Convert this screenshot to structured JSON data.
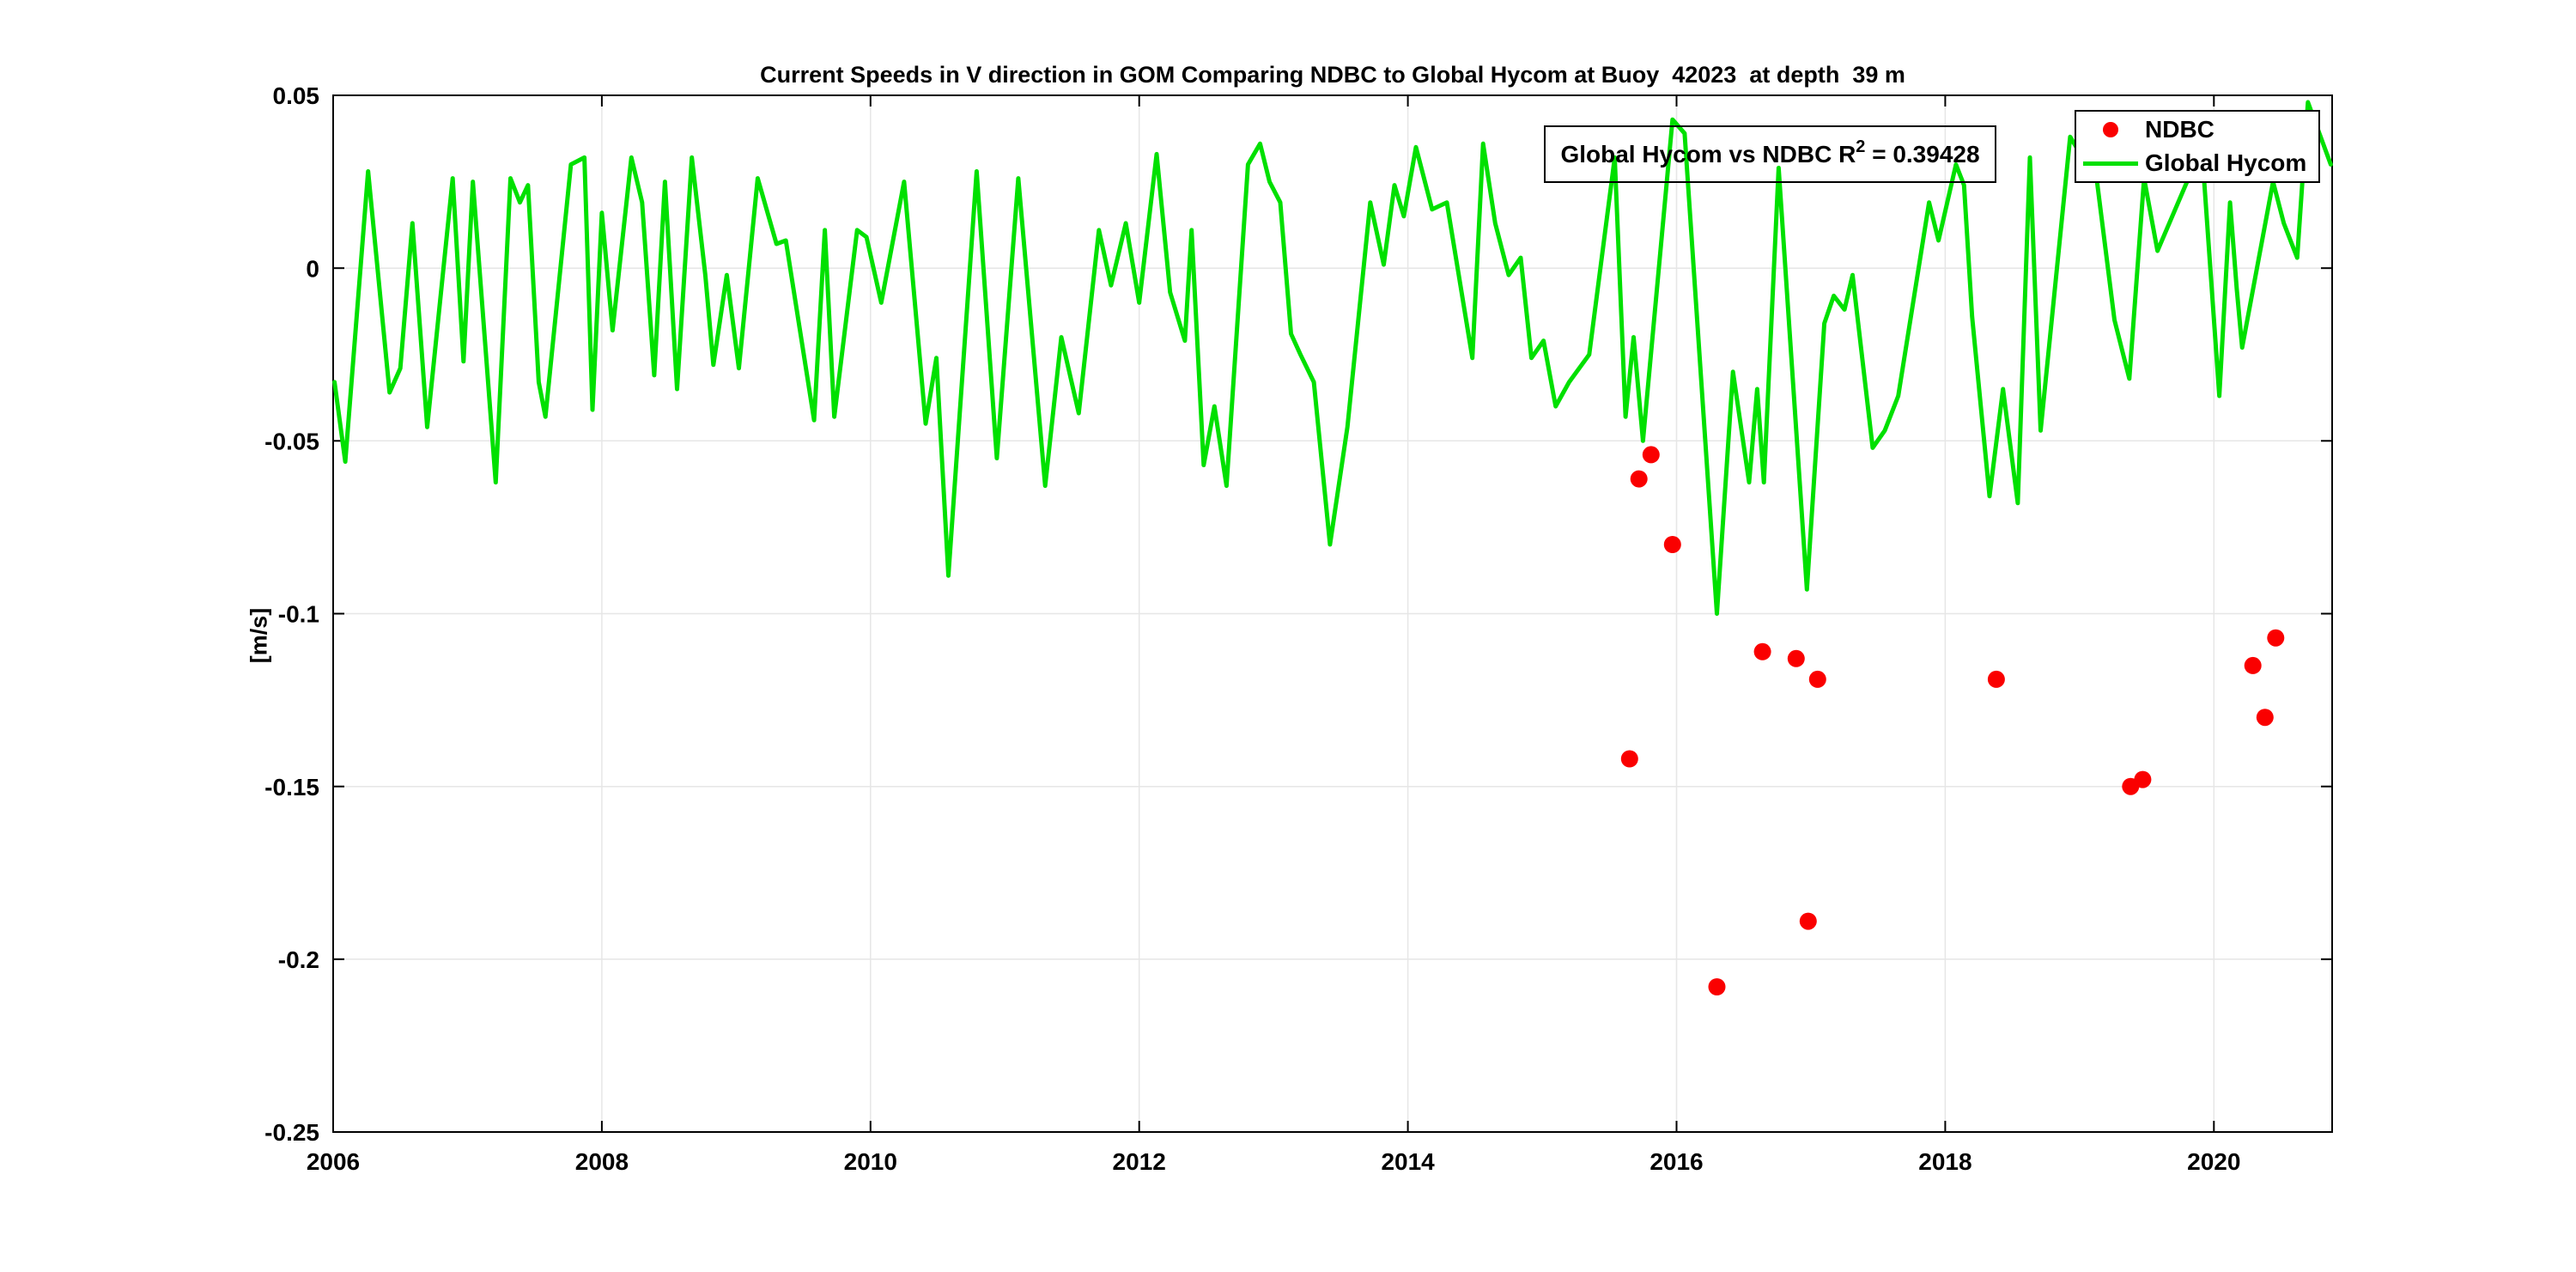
{
  "figure": {
    "title": "Current Speeds in V direction in GOM Comparing NDBC to Global Hycom at Buoy  42023  at depth  39 m",
    "y_axis_label": "[m/s]",
    "annotation": {
      "text_before_sup": "Global Hycom vs NDBC R",
      "sup": "2",
      "text_after_sup": " = 0.39428"
    },
    "colors": {
      "ndbc": "#fa0000",
      "hycom": "#00e000",
      "grid": "#e6e6e6",
      "axis": "#000000",
      "background": "#ffffff"
    }
  },
  "chart_data": {
    "type": "line",
    "title": "Current Speeds in V direction in GOM Comparing NDBC to Global Hycom at Buoy  42023  at depth  39 m",
    "xlabel": "",
    "ylabel": "[m/s]",
    "xlim": [
      2006,
      2020.88
    ],
    "ylim": [
      -0.25,
      0.05
    ],
    "xticks": [
      2006,
      2008,
      2010,
      2012,
      2014,
      2016,
      2018,
      2020
    ],
    "xtick_labels": [
      "2006",
      "2008",
      "2010",
      "2012",
      "2014",
      "2016",
      "2018",
      "2020"
    ],
    "yticks": [
      0.05,
      0,
      -0.05,
      -0.1,
      -0.15,
      -0.2,
      -0.25
    ],
    "ytick_labels": [
      "0.05",
      "0",
      "-0.05",
      "-0.1",
      "-0.15",
      "-0.2",
      "-0.25"
    ],
    "grid": true,
    "legend_position": "top-right",
    "annotation": "Global Hycom vs NDBC R² = 0.39428",
    "series": [
      {
        "name": "NDBC",
        "type": "scatter",
        "color": "#fa0000",
        "marker": "filled-circle",
        "points": [
          [
            2015.65,
            -0.142
          ],
          [
            2015.72,
            -0.061
          ],
          [
            2015.81,
            -0.054
          ],
          [
            2015.97,
            -0.08
          ],
          [
            2016.3,
            -0.208
          ],
          [
            2016.64,
            -0.111
          ],
          [
            2016.89,
            -0.113
          ],
          [
            2016.98,
            -0.189
          ],
          [
            2017.05,
            -0.119
          ],
          [
            2018.38,
            -0.119
          ],
          [
            2019.38,
            -0.15
          ],
          [
            2019.47,
            -0.148
          ],
          [
            2020.29,
            -0.115
          ],
          [
            2020.38,
            -0.13
          ],
          [
            2020.46,
            -0.107
          ]
        ]
      },
      {
        "name": "Global Hycom",
        "type": "line",
        "color": "#00e000",
        "points": [
          [
            2006.01,
            -0.033
          ],
          [
            2006.09,
            -0.056
          ],
          [
            2006.26,
            0.028
          ],
          [
            2006.42,
            -0.036
          ],
          [
            2006.5,
            -0.029
          ],
          [
            2006.59,
            0.013
          ],
          [
            2006.7,
            -0.046
          ],
          [
            2006.89,
            0.026
          ],
          [
            2006.97,
            -0.027
          ],
          [
            2007.04,
            0.025
          ],
          [
            2007.21,
            -0.062
          ],
          [
            2007.32,
            0.026
          ],
          [
            2007.39,
            0.019
          ],
          [
            2007.45,
            0.024
          ],
          [
            2007.53,
            -0.033
          ],
          [
            2007.58,
            -0.043
          ],
          [
            2007.77,
            0.03
          ],
          [
            2007.87,
            0.032
          ],
          [
            2007.93,
            -0.041
          ],
          [
            2008.0,
            0.016
          ],
          [
            2008.08,
            -0.018
          ],
          [
            2008.22,
            0.032
          ],
          [
            2008.3,
            0.019
          ],
          [
            2008.39,
            -0.031
          ],
          [
            2008.47,
            0.025
          ],
          [
            2008.56,
            -0.035
          ],
          [
            2008.67,
            0.032
          ],
          [
            2008.77,
            -0.002
          ],
          [
            2008.83,
            -0.028
          ],
          [
            2008.93,
            -0.002
          ],
          [
            2009.02,
            -0.029
          ],
          [
            2009.16,
            0.026
          ],
          [
            2009.3,
            0.007
          ],
          [
            2009.37,
            0.008
          ],
          [
            2009.58,
            -0.044
          ],
          [
            2009.66,
            0.011
          ],
          [
            2009.73,
            -0.043
          ],
          [
            2009.9,
            0.011
          ],
          [
            2009.97,
            0.009
          ],
          [
            2010.08,
            -0.01
          ],
          [
            2010.25,
            0.025
          ],
          [
            2010.41,
            -0.045
          ],
          [
            2010.49,
            -0.026
          ],
          [
            2010.58,
            -0.089
          ],
          [
            2010.79,
            0.028
          ],
          [
            2010.94,
            -0.055
          ],
          [
            2011.1,
            0.026
          ],
          [
            2011.3,
            -0.063
          ],
          [
            2011.42,
            -0.02
          ],
          [
            2011.55,
            -0.042
          ],
          [
            2011.7,
            0.011
          ],
          [
            2011.79,
            -0.005
          ],
          [
            2011.9,
            0.013
          ],
          [
            2012.0,
            -0.01
          ],
          [
            2012.13,
            0.033
          ],
          [
            2012.23,
            -0.007
          ],
          [
            2012.34,
            -0.021
          ],
          [
            2012.39,
            0.011
          ],
          [
            2012.48,
            -0.057
          ],
          [
            2012.56,
            -0.04
          ],
          [
            2012.65,
            -0.063
          ],
          [
            2012.81,
            0.03
          ],
          [
            2012.9,
            0.036
          ],
          [
            2012.97,
            0.025
          ],
          [
            2013.05,
            0.019
          ],
          [
            2013.13,
            -0.019
          ],
          [
            2013.2,
            -0.025
          ],
          [
            2013.3,
            -0.033
          ],
          [
            2013.42,
            -0.08
          ],
          [
            2013.55,
            -0.046
          ],
          [
            2013.72,
            0.019
          ],
          [
            2013.82,
            0.001
          ],
          [
            2013.9,
            0.024
          ],
          [
            2013.97,
            0.015
          ],
          [
            2014.06,
            0.035
          ],
          [
            2014.18,
            0.017
          ],
          [
            2014.29,
            0.019
          ],
          [
            2014.48,
            -0.026
          ],
          [
            2014.56,
            0.036
          ],
          [
            2014.65,
            0.013
          ],
          [
            2014.75,
            -0.002
          ],
          [
            2014.84,
            0.003
          ],
          [
            2014.92,
            -0.026
          ],
          [
            2015.01,
            -0.021
          ],
          [
            2015.1,
            -0.04
          ],
          [
            2015.2,
            -0.033
          ],
          [
            2015.35,
            -0.025
          ],
          [
            2015.54,
            0.032
          ],
          [
            2015.62,
            -0.043
          ],
          [
            2015.68,
            -0.02
          ],
          [
            2015.75,
            -0.05
          ],
          [
            2015.97,
            0.043
          ],
          [
            2016.06,
            0.039
          ],
          [
            2016.3,
            -0.1
          ],
          [
            2016.42,
            -0.03
          ],
          [
            2016.54,
            -0.062
          ],
          [
            2016.6,
            -0.035
          ],
          [
            2016.65,
            -0.062
          ],
          [
            2016.76,
            0.029
          ],
          [
            2016.97,
            -0.093
          ],
          [
            2017.1,
            -0.016
          ],
          [
            2017.17,
            -0.008
          ],
          [
            2017.25,
            -0.012
          ],
          [
            2017.31,
            -0.002
          ],
          [
            2017.46,
            -0.052
          ],
          [
            2017.55,
            -0.047
          ],
          [
            2017.65,
            -0.037
          ],
          [
            2017.88,
            0.019
          ],
          [
            2017.95,
            0.008
          ],
          [
            2018.08,
            0.03
          ],
          [
            2018.14,
            0.024
          ],
          [
            2018.2,
            -0.014
          ],
          [
            2018.33,
            -0.066
          ],
          [
            2018.43,
            -0.035
          ],
          [
            2018.54,
            -0.068
          ],
          [
            2018.63,
            0.032
          ],
          [
            2018.71,
            -0.047
          ],
          [
            2018.93,
            0.038
          ],
          [
            2019.13,
            0.025
          ],
          [
            2019.26,
            -0.015
          ],
          [
            2019.37,
            -0.032
          ],
          [
            2019.48,
            0.026
          ],
          [
            2019.58,
            0.005
          ],
          [
            2019.91,
            0.035
          ],
          [
            2020.04,
            -0.037
          ],
          [
            2020.12,
            0.019
          ],
          [
            2020.17,
            -0.006
          ],
          [
            2020.21,
            -0.023
          ],
          [
            2020.44,
            0.025
          ],
          [
            2020.52,
            0.013
          ],
          [
            2020.62,
            0.003
          ],
          [
            2020.66,
            0.026
          ],
          [
            2020.7,
            0.048
          ],
          [
            2020.87,
            0.03
          ]
        ]
      }
    ]
  }
}
